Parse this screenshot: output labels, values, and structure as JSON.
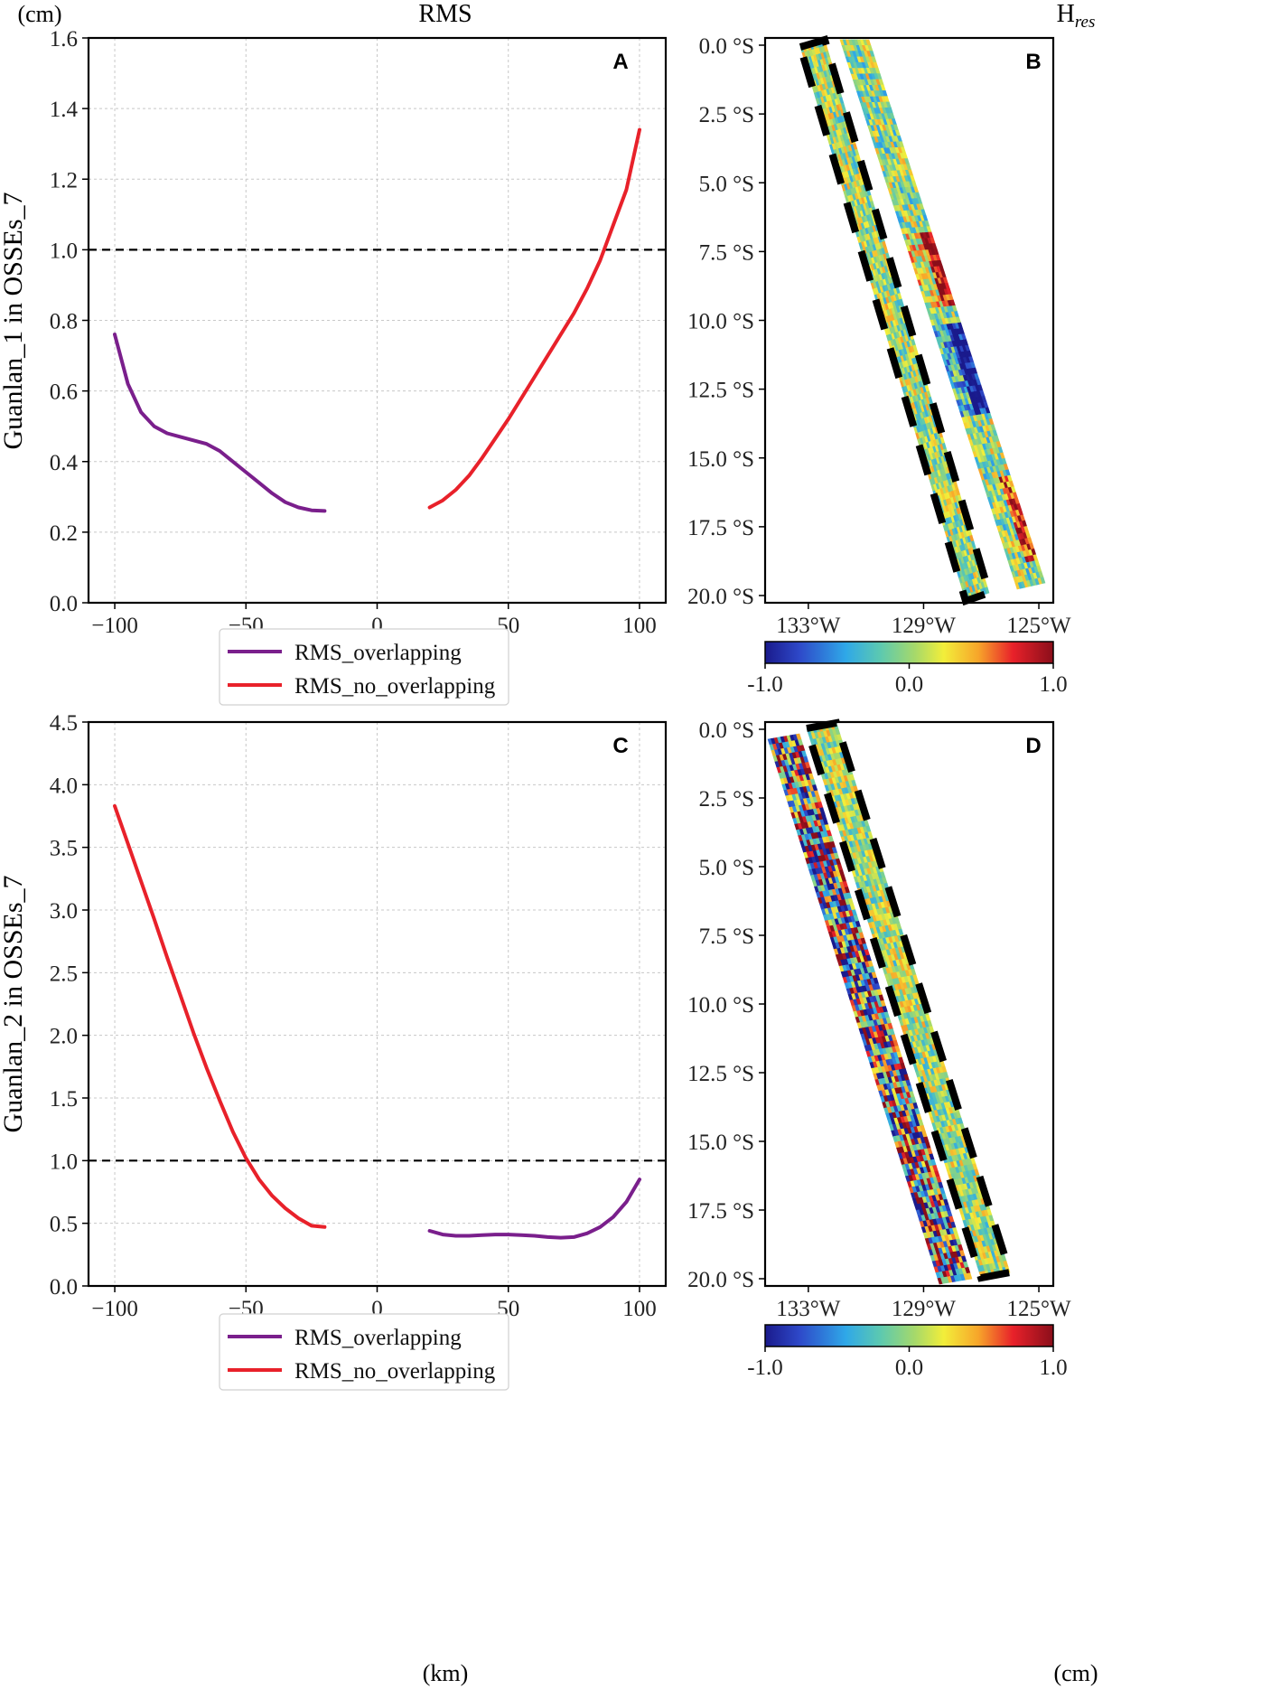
{
  "header": {
    "unit_cm_left": "(cm)",
    "rms_title": "RMS",
    "hres_title_main": "H",
    "hres_title_sub": "res"
  },
  "footer": {
    "x_unit": "(km)",
    "colorbar_unit": "(cm)"
  },
  "chart_data": [
    {
      "panel": "A",
      "type": "line",
      "ylabel": "Guanlan_1 in OSSEs_7",
      "xlabel": "",
      "xlim": [
        -110,
        110
      ],
      "ylim": [
        0.0,
        1.6
      ],
      "xticks": [
        -100,
        -50,
        0,
        50,
        100
      ],
      "xtick_labels": [
        "−100",
        "−50",
        "0",
        "50",
        "100"
      ],
      "yticks": [
        0.0,
        0.2,
        0.4,
        0.6,
        0.8,
        1.0,
        1.2,
        1.4,
        1.6
      ],
      "ytick_labels": [
        "0.0",
        "0.2",
        "0.4",
        "0.6",
        "0.8",
        "1.0",
        "1.2",
        "1.4",
        "1.6"
      ],
      "reference_line": 1.0,
      "grid": true,
      "series": [
        {
          "name": "RMS_overlapping",
          "color": "#7a1f8c",
          "x": [
            -100,
            -95,
            -90,
            -85,
            -80,
            -75,
            -70,
            -65,
            -60,
            -55,
            -50,
            -45,
            -40,
            -35,
            -30,
            -25,
            -20
          ],
          "y": [
            0.76,
            0.62,
            0.54,
            0.5,
            0.48,
            0.47,
            0.46,
            0.45,
            0.43,
            0.4,
            0.37,
            0.34,
            0.31,
            0.285,
            0.27,
            0.262,
            0.26
          ]
        },
        {
          "name": "RMS_no_overlapping",
          "color": "#e8212a",
          "x": [
            20,
            25,
            30,
            35,
            40,
            45,
            50,
            55,
            60,
            65,
            70,
            75,
            80,
            85,
            90,
            95,
            100
          ],
          "y": [
            0.27,
            0.29,
            0.32,
            0.36,
            0.41,
            0.465,
            0.52,
            0.58,
            0.64,
            0.7,
            0.76,
            0.82,
            0.89,
            0.97,
            1.07,
            1.17,
            1.34
          ]
        }
      ],
      "legend": [
        "RMS_overlapping",
        "RMS_no_overlapping"
      ]
    },
    {
      "panel": "B",
      "type": "heatmap",
      "title": "Hres",
      "yticks": [
        0.0,
        2.5,
        5.0,
        7.5,
        10.0,
        12.5,
        15.0,
        17.5,
        20.0
      ],
      "ytick_labels": [
        "0.0 °S",
        "2.5 °S",
        "5.0 °S",
        "7.5 °S",
        "10.0 °S",
        "12.5 °S",
        "15.0 °S",
        "17.5 °S",
        "20.0 °S"
      ],
      "xticks": [
        -133,
        -129,
        -125
      ],
      "xtick_labels": [
        "133°W",
        "129°W",
        "125°W"
      ],
      "colorbar": {
        "range": [
          -1.0,
          1.0
        ],
        "tick_labels": [
          "-1.0",
          "0.0",
          "1.0"
        ]
      }
    },
    {
      "panel": "C",
      "type": "line",
      "ylabel": "Guanlan_2 in OSSEs_7",
      "xlabel": "(km)",
      "xlim": [
        -110,
        110
      ],
      "ylim": [
        0.0,
        4.5
      ],
      "xticks": [
        -100,
        -50,
        0,
        50,
        100
      ],
      "xtick_labels": [
        "−100",
        "−50",
        "0",
        "50",
        "100"
      ],
      "yticks": [
        0.0,
        0.5,
        1.0,
        1.5,
        2.0,
        2.5,
        3.0,
        3.5,
        4.0,
        4.5
      ],
      "ytick_labels": [
        "0.0",
        "0.5",
        "1.0",
        "1.5",
        "2.0",
        "2.5",
        "3.0",
        "3.5",
        "4.0",
        "4.5"
      ],
      "reference_line": 1.0,
      "grid": true,
      "series": [
        {
          "name": "RMS_overlapping",
          "color": "#7a1f8c",
          "x": [
            20,
            25,
            30,
            35,
            40,
            45,
            50,
            55,
            60,
            65,
            70,
            75,
            80,
            85,
            90,
            95,
            100
          ],
          "y": [
            0.44,
            0.41,
            0.4,
            0.4,
            0.405,
            0.41,
            0.41,
            0.405,
            0.4,
            0.39,
            0.385,
            0.39,
            0.42,
            0.47,
            0.55,
            0.67,
            0.85
          ]
        },
        {
          "name": "RMS_no_overlapping",
          "color": "#e8212a",
          "x": [
            -100,
            -95,
            -90,
            -85,
            -80,
            -75,
            -70,
            -65,
            -60,
            -55,
            -50,
            -45,
            -40,
            -35,
            -30,
            -25,
            -20
          ],
          "y": [
            3.83,
            3.53,
            3.23,
            2.93,
            2.62,
            2.32,
            2.02,
            1.74,
            1.48,
            1.23,
            1.02,
            0.85,
            0.72,
            0.62,
            0.54,
            0.48,
            0.47
          ]
        }
      ],
      "legend": [
        "RMS_overlapping",
        "RMS_no_overlapping"
      ]
    },
    {
      "panel": "D",
      "type": "heatmap",
      "title": "",
      "yticks": [
        0.0,
        2.5,
        5.0,
        7.5,
        10.0,
        12.5,
        15.0,
        17.5,
        20.0
      ],
      "ytick_labels": [
        "0.0 °S",
        "2.5 °S",
        "5.0 °S",
        "7.5 °S",
        "10.0 °S",
        "12.5 °S",
        "15.0 °S",
        "17.5 °S",
        "20.0 °S"
      ],
      "xticks": [
        -133,
        -129,
        -125
      ],
      "xtick_labels": [
        "133°W",
        "129°W",
        "125°W"
      ],
      "colorbar": {
        "range": [
          -1.0,
          1.0
        ],
        "tick_labels": [
          "-1.0",
          "0.0",
          "1.0"
        ]
      }
    }
  ]
}
